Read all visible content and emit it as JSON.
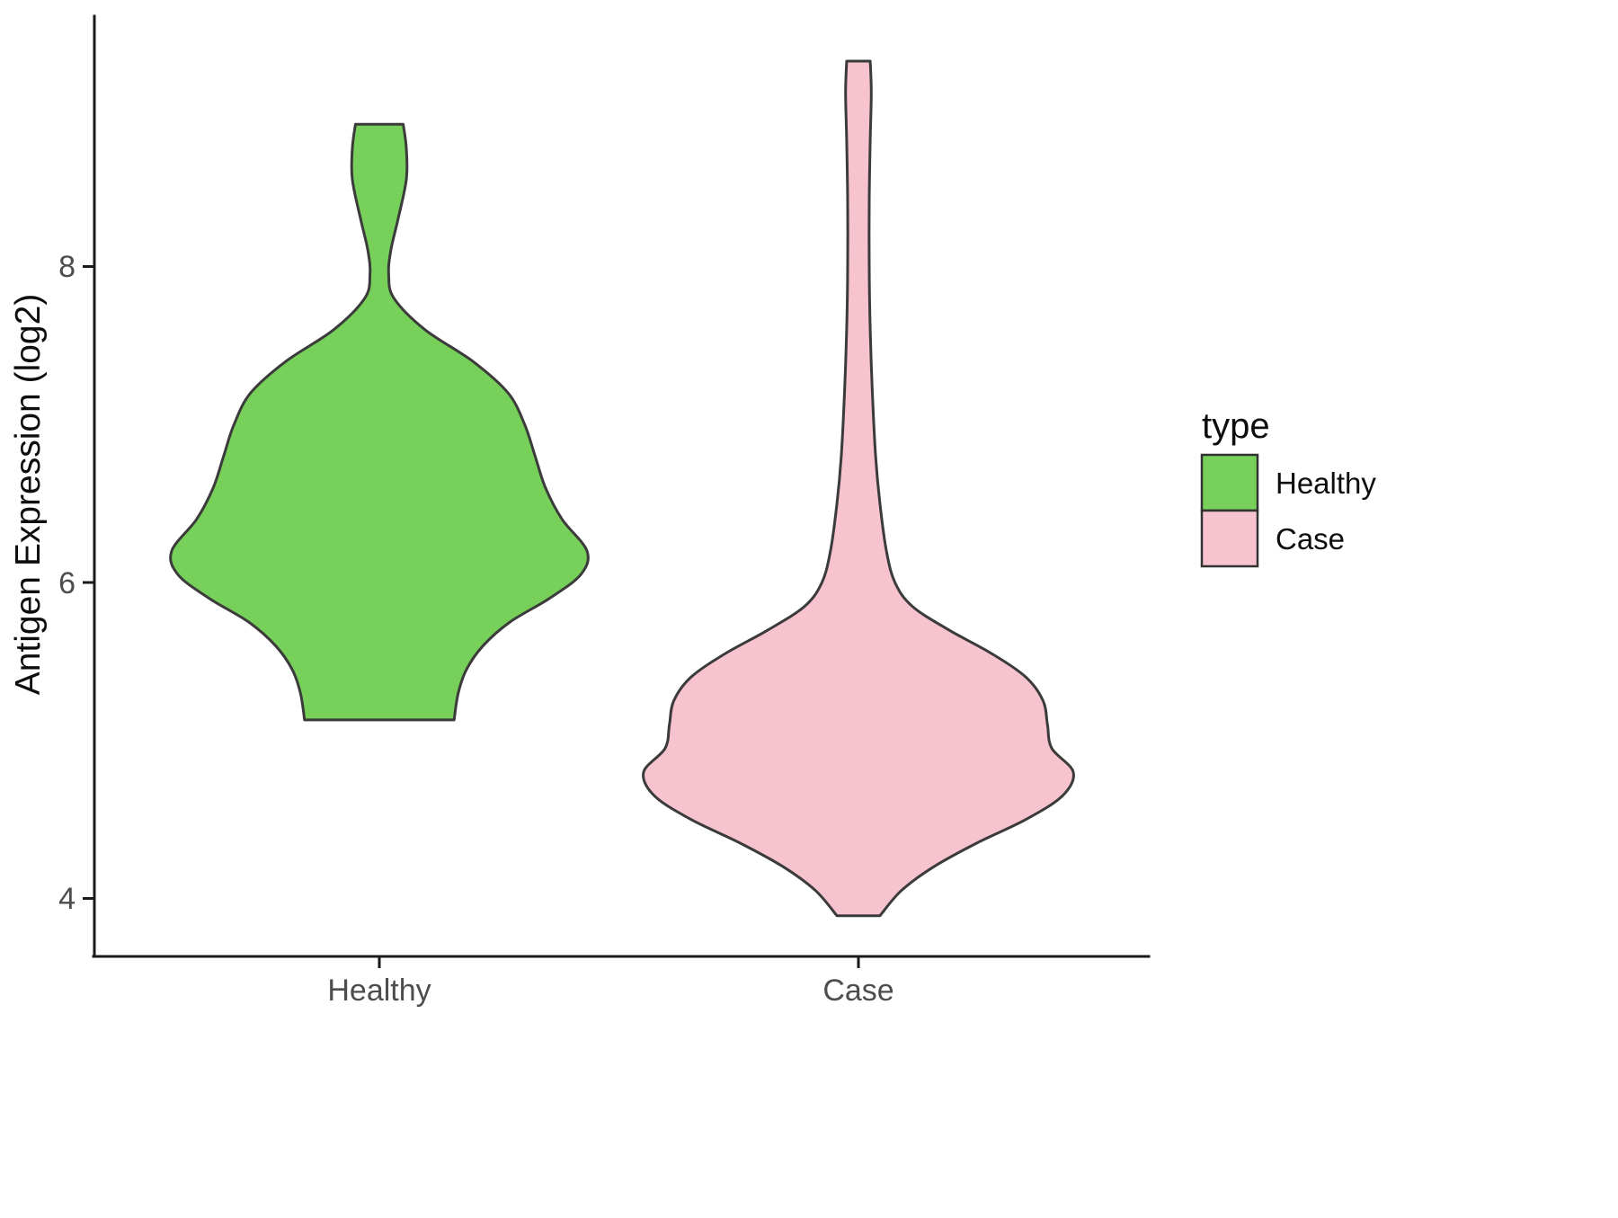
{
  "chart_data": {
    "type": "violin",
    "title": "",
    "xlabel": "",
    "ylabel": "Antigen Expression (log2)",
    "categories": [
      "Healthy",
      "Case"
    ],
    "y_ticks": [
      "8",
      "6",
      "4"
    ],
    "y_tick_values": [
      8,
      6,
      4
    ],
    "ylim": [
      3.5,
      9.6
    ],
    "grid": "off",
    "outline_color": "#3b3b3b",
    "background_color": "#ffffff",
    "legend": {
      "title": "type",
      "position": "right",
      "entries": [
        {
          "label": "Healthy",
          "color": "#77d05a"
        },
        {
          "label": "Case",
          "color": "#f6c3ce"
        }
      ]
    },
    "series": [
      {
        "name": "Healthy",
        "color": "#77d05a",
        "y_range": [
          5.13,
          8.9
        ],
        "profile_note": "pairs of [expression_value, relative_halfwidth 0-1]",
        "profile": [
          [
            8.9,
            0.115
          ],
          [
            8.75,
            0.13
          ],
          [
            8.55,
            0.13
          ],
          [
            8.3,
            0.09
          ],
          [
            8.1,
            0.055
          ],
          [
            7.95,
            0.045
          ],
          [
            7.8,
            0.07
          ],
          [
            7.6,
            0.22
          ],
          [
            7.4,
            0.45
          ],
          [
            7.2,
            0.62
          ],
          [
            7.0,
            0.7
          ],
          [
            6.8,
            0.75
          ],
          [
            6.6,
            0.8
          ],
          [
            6.4,
            0.88
          ],
          [
            6.2,
            1.0
          ],
          [
            6.05,
            0.97
          ],
          [
            5.9,
            0.82
          ],
          [
            5.75,
            0.63
          ],
          [
            5.6,
            0.5
          ],
          [
            5.45,
            0.42
          ],
          [
            5.3,
            0.38
          ],
          [
            5.13,
            0.36
          ]
        ]
      },
      {
        "name": "Case",
        "color": "#f6c3ce",
        "y_range": [
          3.89,
          9.3
        ],
        "profile_note": "pairs of [expression_value, relative_halfwidth 0-1]",
        "profile": [
          [
            9.3,
            0.055
          ],
          [
            9.1,
            0.06
          ],
          [
            8.8,
            0.055
          ],
          [
            8.4,
            0.05
          ],
          [
            8.0,
            0.05
          ],
          [
            7.6,
            0.055
          ],
          [
            7.2,
            0.065
          ],
          [
            6.8,
            0.08
          ],
          [
            6.5,
            0.1
          ],
          [
            6.2,
            0.13
          ],
          [
            6.0,
            0.17
          ],
          [
            5.85,
            0.25
          ],
          [
            5.7,
            0.42
          ],
          [
            5.55,
            0.62
          ],
          [
            5.4,
            0.78
          ],
          [
            5.25,
            0.86
          ],
          [
            5.1,
            0.88
          ],
          [
            4.95,
            0.9
          ],
          [
            4.8,
            1.0
          ],
          [
            4.65,
            0.95
          ],
          [
            4.5,
            0.78
          ],
          [
            4.35,
            0.55
          ],
          [
            4.2,
            0.35
          ],
          [
            4.05,
            0.2
          ],
          [
            3.89,
            0.1
          ]
        ]
      }
    ]
  }
}
